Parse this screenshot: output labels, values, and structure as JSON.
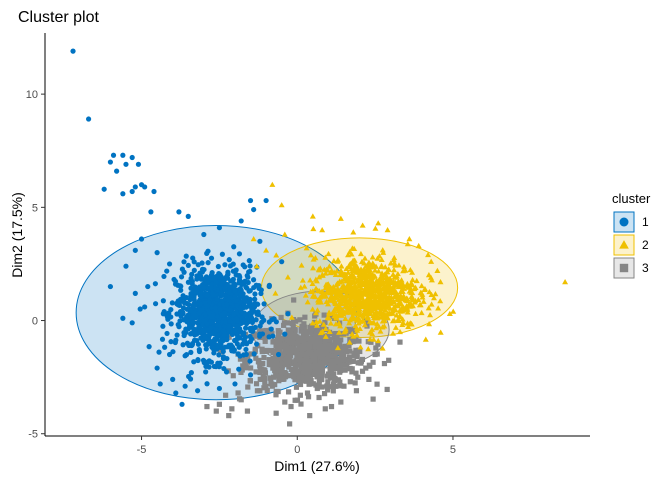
{
  "chart_data": {
    "type": "scatter",
    "title": "Cluster plot",
    "xlabel": "Dim1 (27.6%)",
    "ylabel": "Dim2 (17.5%)",
    "xlim": [
      -8.1,
      9.4
    ],
    "ylim": [
      -5.1,
      12.7
    ],
    "x_ticks": [
      -5,
      0,
      5
    ],
    "y_ticks": [
      -5,
      0,
      5,
      10
    ],
    "x_tick_labels": [
      "-5",
      "0",
      "5"
    ],
    "y_tick_labels": [
      "-5",
      "0",
      "5",
      "10"
    ],
    "grid": false,
    "legend": {
      "title": "cluster",
      "placement": "right"
    },
    "series": [
      {
        "name": "1",
        "marker": "circle",
        "color": "#0073C2",
        "ellipse": {
          "center": [
            -2.6,
            0.35
          ],
          "rx": 4.5,
          "ry": 3.85
        },
        "core": {
          "center": [
            -2.6,
            0.35
          ],
          "sx": 0.65,
          "sy": 1.0,
          "n": 950
        },
        "points": [
          [
            -7.2,
            11.9
          ],
          [
            -6.7,
            8.9
          ],
          [
            -5.9,
            7.3
          ],
          [
            -5.6,
            7.3
          ],
          [
            -5.3,
            7.2
          ],
          [
            -5.5,
            6.9
          ],
          [
            -5.1,
            6.9
          ],
          [
            -6.0,
            7.0
          ],
          [
            -5.8,
            6.6
          ],
          [
            -6.2,
            5.8
          ],
          [
            -5.6,
            5.6
          ],
          [
            -5.2,
            5.9
          ],
          [
            -4.9,
            5.9
          ],
          [
            -4.6,
            5.7
          ],
          [
            -5.0,
            6.0
          ],
          [
            -5.3,
            5.7
          ],
          [
            -4.7,
            4.8
          ],
          [
            -3.8,
            4.8
          ],
          [
            -3.5,
            4.6
          ],
          [
            -1.5,
            5.3
          ],
          [
            -1.0,
            5.3
          ],
          [
            -1.4,
            4.9
          ],
          [
            -1.8,
            4.4
          ],
          [
            -5.0,
            3.6
          ],
          [
            -5.2,
            3.1
          ],
          [
            -4.5,
            3.0
          ],
          [
            -5.5,
            2.4
          ],
          [
            -4.1,
            2.5
          ],
          [
            -6.0,
            1.5
          ],
          [
            -5.2,
            1.2
          ],
          [
            -4.8,
            1.5
          ],
          [
            -5.6,
            0.1
          ],
          [
            -5.3,
            -0.1
          ],
          [
            -4.9,
            0.6
          ],
          [
            -4.3,
            0.3
          ],
          [
            -4.5,
            -2.1
          ],
          [
            -4.0,
            -2.6
          ],
          [
            -3.6,
            -2.9
          ],
          [
            -3.9,
            -3.2
          ],
          [
            -4.4,
            -2.8
          ],
          [
            -3.7,
            -3.7
          ],
          [
            -3.4,
            -2.3
          ],
          [
            -4.1,
            -1.5
          ],
          [
            -3.2,
            -3.1
          ],
          [
            -2.5,
            -3.0
          ],
          [
            -2.0,
            -2.8
          ],
          [
            -1.5,
            -2.4
          ],
          [
            -0.6,
            -1.5
          ],
          [
            -0.4,
            -0.6
          ],
          [
            -0.3,
            0.3
          ],
          [
            -0.9,
            1.5
          ],
          [
            -0.5,
            2.6
          ],
          [
            -1.2,
            3.5
          ],
          [
            -3.0,
            3.8
          ],
          [
            -2.5,
            4.1
          ]
        ]
      },
      {
        "name": "2",
        "marker": "triangle",
        "color": "#EFC000",
        "ellipse": {
          "center": [
            2.0,
            1.45
          ],
          "rx": 3.15,
          "ry": 2.2
        },
        "core": {
          "center": [
            2.2,
            1.2
          ],
          "sx": 0.85,
          "sy": 0.8,
          "n": 900
        },
        "points": [
          [
            8.6,
            1.7
          ],
          [
            -0.8,
            6.0
          ],
          [
            -0.5,
            5.1
          ],
          [
            0.5,
            4.6
          ],
          [
            0.8,
            4.0
          ],
          [
            1.4,
            4.5
          ],
          [
            2.1,
            4.2
          ],
          [
            2.9,
            4.0
          ],
          [
            3.6,
            3.6
          ],
          [
            4.2,
            2.9
          ],
          [
            4.5,
            2.2
          ],
          [
            4.1,
            1.4
          ],
          [
            3.8,
            0.3
          ],
          [
            3.3,
            -0.5
          ],
          [
            2.6,
            -0.9
          ],
          [
            1.8,
            -0.7
          ],
          [
            -1.3,
            2.4
          ],
          [
            -0.7,
            1.2
          ],
          [
            -1.4,
            3.6
          ],
          [
            4.9,
            0.3
          ],
          [
            3.4,
            -0.1
          ],
          [
            2.4,
            -0.4
          ],
          [
            -0.4,
            3.8
          ],
          [
            1.8,
            3.9
          ],
          [
            4.3,
            2.6
          ],
          [
            0.3,
            3.2
          ],
          [
            -1.0,
            3.1
          ],
          [
            3.9,
            3.3
          ],
          [
            4.6,
            1.7
          ],
          [
            2.6,
            4.3
          ]
        ]
      },
      {
        "name": "3",
        "marker": "square",
        "color": "#868686",
        "ellipse": {
          "center": [
            0.75,
            -0.4
          ],
          "rx": 2.2,
          "ry": 1.7
        },
        "core": {
          "center": [
            0.3,
            -1.55
          ],
          "sx": 0.95,
          "sy": 0.75,
          "n": 750
        },
        "points": [
          [
            -2.1,
            -3.9
          ],
          [
            -2.2,
            -4.2
          ],
          [
            -2.6,
            -4.0
          ],
          [
            -2.9,
            -3.8
          ],
          [
            -2.5,
            -3.7
          ],
          [
            -1.8,
            -3.5
          ],
          [
            -1.6,
            -4.0
          ],
          [
            -0.2,
            -3.8
          ],
          [
            0.4,
            -4.2
          ],
          [
            0.9,
            -3.9
          ],
          [
            1.4,
            -3.6
          ],
          [
            0.7,
            -3.4
          ],
          [
            1.9,
            -3.1
          ],
          [
            2.3,
            -2.6
          ],
          [
            2.2,
            -2.1
          ],
          [
            2.5,
            -1.5
          ],
          [
            -0.8,
            -2.9
          ],
          [
            -1.2,
            -3.1
          ],
          [
            0.1,
            -3.3
          ],
          [
            1.5,
            -2.9
          ],
          [
            -1.9,
            -3.2
          ],
          [
            2.8,
            -1.9
          ],
          [
            -0.4,
            -3.6
          ],
          [
            1.1,
            -3.8
          ],
          [
            -2.3,
            -3.3
          ]
        ]
      }
    ]
  }
}
